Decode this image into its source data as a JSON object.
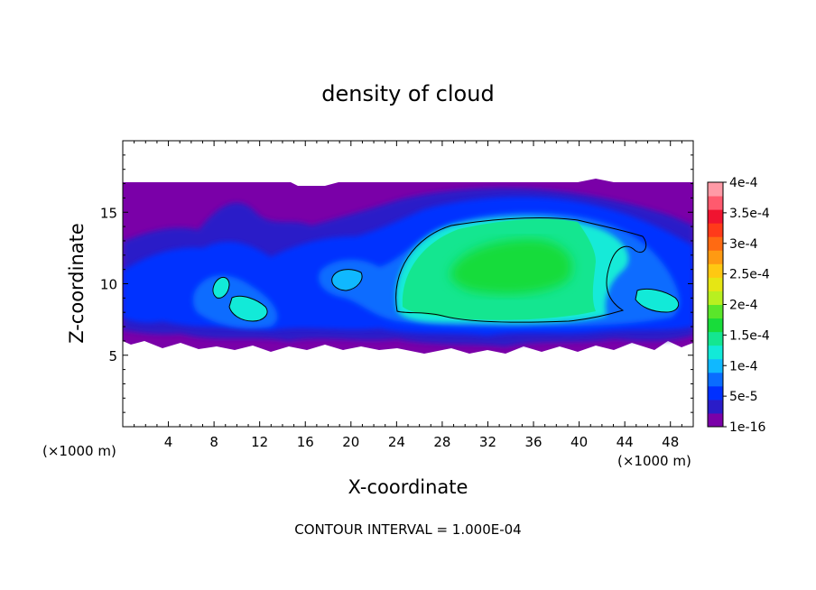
{
  "chart_data": {
    "type": "heatmap",
    "title": "density of cloud",
    "xlabel": "X-coordinate",
    "ylabel": "Z-coordinate",
    "x_unit_left": "(×1000 m)",
    "x_unit_right": "(×1000 m)",
    "xlim": [
      0,
      50
    ],
    "ylim": [
      0,
      20
    ],
    "xticks": [
      4,
      8,
      12,
      16,
      20,
      24,
      28,
      32,
      36,
      40,
      44,
      48
    ],
    "yticks": [
      5,
      10,
      15
    ],
    "footer": "CONTOUR INTERVAL = 1.000E-04",
    "colorbar": {
      "labels": [
        "1e-16",
        "5e-5",
        "1e-4",
        "1.5e-4",
        "2e-4",
        "2.5e-4",
        "3e-4",
        "3.5e-4",
        "4e-4"
      ],
      "colors": [
        "#7a00a8",
        "#2a1cc8",
        "#0030ff",
        "#0a6cff",
        "#10b8ff",
        "#12ead8",
        "#14e690",
        "#18dc3a",
        "#5ae62a",
        "#b8f020",
        "#e6e614",
        "#ffc812",
        "#ff9a12",
        "#ff6a12",
        "#ff3a1a",
        "#f01430",
        "#ff5a6e",
        "#ff9aa6"
      ]
    },
    "cloud": {
      "top_z": 17,
      "base_z_approx": 5.5,
      "max_value_approx": 0.00022,
      "core_x_range": [
        24,
        42
      ],
      "core_z_range": [
        7.5,
        14.5
      ]
    }
  }
}
